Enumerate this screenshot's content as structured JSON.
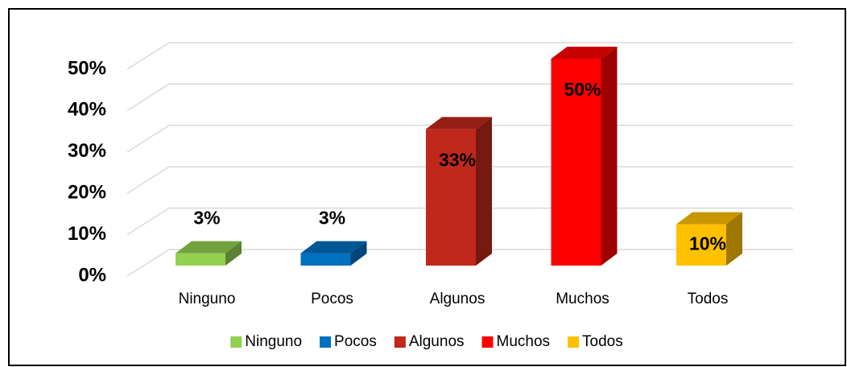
{
  "chart_data": {
    "type": "bar3d",
    "categories": [
      "Ninguno",
      "Pocos",
      "Algunos",
      "Muchos",
      "Todos"
    ],
    "values": [
      3,
      3,
      33,
      50,
      10
    ],
    "value_labels": [
      "3%",
      "3%",
      "33%",
      "50%",
      "10%"
    ],
    "colors": [
      "#92d050",
      "#0070c0",
      "#c0281c",
      "#ff0000",
      "#ffc000"
    ],
    "ylim": [
      0,
      50
    ],
    "yticks": [
      {
        "value": 0,
        "label": "0%"
      },
      {
        "value": 10,
        "label": "10%"
      },
      {
        "value": 20,
        "label": "20%"
      },
      {
        "value": 30,
        "label": "30%"
      },
      {
        "value": 40,
        "label": "40%"
      },
      {
        "value": 50,
        "label": "50%"
      }
    ],
    "grid": true,
    "legend": "bottom"
  }
}
